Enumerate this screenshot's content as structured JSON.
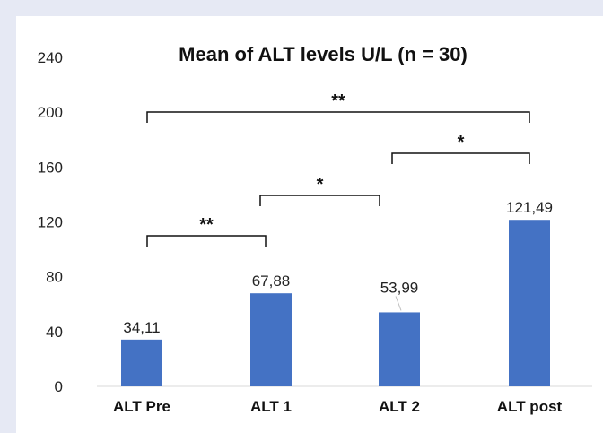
{
  "chart_data": {
    "type": "bar",
    "title": "Mean of ALT levels U/L (n = 30)",
    "categories": [
      "ALT Pre",
      "ALT 1",
      "ALT 2",
      "ALT post"
    ],
    "values": [
      34.11,
      67.88,
      53.99,
      121.49
    ],
    "data_labels": [
      "34,11",
      "67,88",
      "53,99",
      "121,49"
    ],
    "ylim": [
      0,
      240
    ],
    "yticks": [
      0,
      40,
      80,
      120,
      160,
      200,
      240
    ],
    "xlabel": "",
    "ylabel": "",
    "grid": false,
    "bar_color": "#4472c4",
    "significance": [
      {
        "from": "ALT Pre",
        "to": "ALT 1",
        "label": "**"
      },
      {
        "from": "ALT 1",
        "to": "ALT 2",
        "label": "*"
      },
      {
        "from": "ALT 2",
        "to": "ALT post",
        "label": "*"
      },
      {
        "from": "ALT Pre",
        "to": "ALT post",
        "label": "**"
      }
    ]
  }
}
